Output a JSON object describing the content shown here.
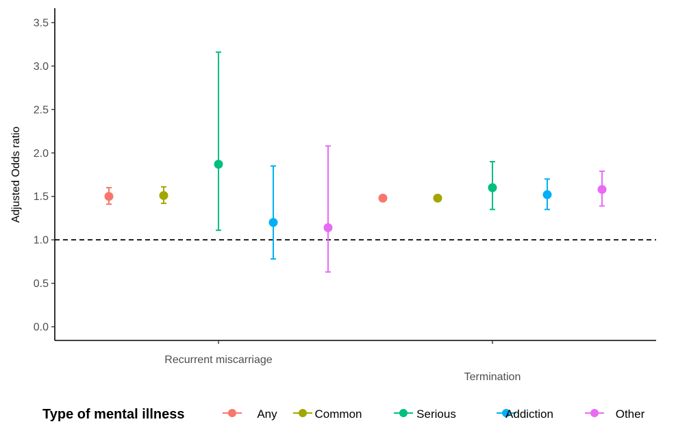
{
  "chart_data": {
    "type": "scatter",
    "subtype": "point-with-error-bars",
    "title": "",
    "xlabel": "",
    "ylabel": "Adjusted Odds ratio",
    "ylim": [
      -0.15,
      3.65
    ],
    "yticks": [
      0.0,
      0.5,
      1.0,
      1.5,
      2.0,
      2.5,
      3.0,
      3.5
    ],
    "ytick_labels": [
      "0.0",
      "0.5",
      "1.0",
      "1.5",
      "2.0",
      "2.5",
      "3.0",
      "3.5"
    ],
    "categories": [
      "Recurrent miscarriage",
      "Termination"
    ],
    "reference_line": {
      "y": 1.0,
      "style": "dashed",
      "color": "#000000"
    },
    "grid": false,
    "legend": {
      "title": "Type of mental illness",
      "position": "bottom",
      "entries": [
        "Any",
        "Common",
        "Serious",
        "Addiction",
        "Other"
      ]
    },
    "series": [
      {
        "name": "Any",
        "color": "#F8766D",
        "points": [
          {
            "category": "Recurrent miscarriage",
            "y": 1.5,
            "lower": 1.41,
            "upper": 1.6
          },
          {
            "category": "Termination",
            "y": 1.48,
            "lower": 1.46,
            "upper": 1.5
          }
        ]
      },
      {
        "name": "Common",
        "color": "#A3A500",
        "points": [
          {
            "category": "Recurrent miscarriage",
            "y": 1.51,
            "lower": 1.42,
            "upper": 1.61
          },
          {
            "category": "Termination",
            "y": 1.48,
            "lower": 1.46,
            "upper": 1.5
          }
        ]
      },
      {
        "name": "Serious",
        "color": "#00BF7D",
        "points": [
          {
            "category": "Recurrent miscarriage",
            "y": 1.87,
            "lower": 1.11,
            "upper": 3.16
          },
          {
            "category": "Termination",
            "y": 1.6,
            "lower": 1.35,
            "upper": 1.9
          }
        ]
      },
      {
        "name": "Addiction",
        "color": "#00B0F6",
        "points": [
          {
            "category": "Recurrent miscarriage",
            "y": 1.2,
            "lower": 0.78,
            "upper": 1.85
          },
          {
            "category": "Termination",
            "y": 1.52,
            "lower": 1.35,
            "upper": 1.7
          }
        ]
      },
      {
        "name": "Other",
        "color": "#E76BF3",
        "points": [
          {
            "category": "Recurrent miscarriage",
            "y": 1.14,
            "lower": 0.63,
            "upper": 2.08
          },
          {
            "category": "Termination",
            "y": 1.58,
            "lower": 1.39,
            "upper": 1.79
          }
        ]
      }
    ]
  }
}
